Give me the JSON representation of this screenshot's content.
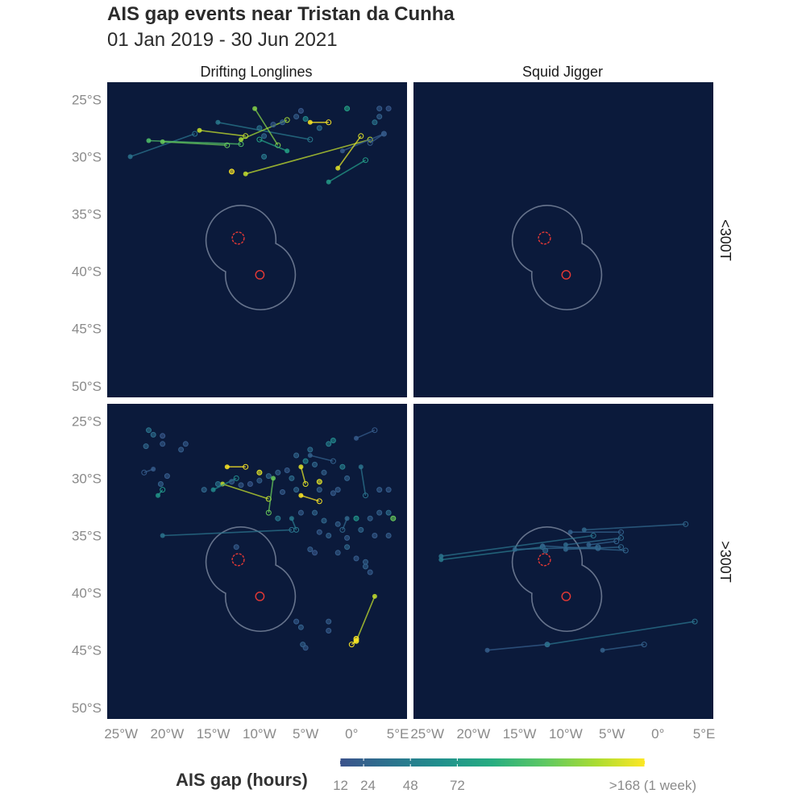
{
  "title": "AIS gap events near Tristan da Cunha",
  "subtitle": "01 Jan 2019 - 30 Jun 2021",
  "facets": {
    "columns": [
      "Drifting Longlines",
      "Squid Jigger"
    ],
    "rows": [
      "<300T",
      ">300T"
    ]
  },
  "axes": {
    "x_ticks": [
      {
        "value": -25,
        "label": "25°W"
      },
      {
        "value": -20,
        "label": "20°W"
      },
      {
        "value": -15,
        "label": "15°W"
      },
      {
        "value": -10,
        "label": "10°W"
      },
      {
        "value": -5,
        "label": "5°W"
      },
      {
        "value": 0,
        "label": "0°"
      },
      {
        "value": 5,
        "label": "5°E"
      }
    ],
    "y_ticks": [
      {
        "value": -25,
        "label": "25°S"
      },
      {
        "value": -30,
        "label": "30°S"
      },
      {
        "value": -35,
        "label": "35°S"
      },
      {
        "value": -40,
        "label": "40°S"
      },
      {
        "value": -45,
        "label": "45°S"
      },
      {
        "value": -50,
        "label": "50°S"
      }
    ],
    "xlim": [
      -26.5,
      6.0
    ],
    "ylim": [
      -51.0,
      -23.5
    ]
  },
  "legend": {
    "title": "AIS gap (hours)",
    "breaks": [
      {
        "value": 12,
        "label": "12"
      },
      {
        "value": 24,
        "label": "24"
      },
      {
        "value": 48,
        "label": "48"
      },
      {
        "value": 72,
        "label": "72"
      },
      {
        "value": 168,
        "label": ">168 (1 week)"
      }
    ],
    "colors": [
      "#3b528b",
      "#2c728e",
      "#21908d",
      "#27ad81",
      "#5dc863",
      "#aadc32",
      "#fde725"
    ]
  },
  "colors": {
    "panel_bg": "#0b1a3b",
    "boundary": "#66738c",
    "island": "#e53935"
  },
  "map_features": {
    "islands": [
      {
        "name": "Tristan da Cunha group",
        "lon": -12.3,
        "lat": -37.1,
        "r": 0.65
      },
      {
        "name": "Gough Island",
        "lon": -9.95,
        "lat": -40.3,
        "r": 0.45
      }
    ],
    "zone_centers": [
      {
        "lon": -12.0,
        "lat": -37.3
      },
      {
        "lon": -9.9,
        "lat": -40.3
      }
    ]
  },
  "chart_data": {
    "type": "scatter",
    "x_unit": "longitude (deg E)",
    "y_unit": "latitude (deg N)",
    "value_unit": "AIS gap (hours)",
    "panels": [
      {
        "column": "Drifting Longlines",
        "row": "<300T",
        "segments": [
          {
            "lon1": -24.0,
            "lat1": -30.0,
            "lon2": -17.0,
            "lat2": -28.0,
            "gap": 40
          },
          {
            "lon1": -22.0,
            "lat1": -28.6,
            "lon2": -12.0,
            "lat2": -28.9,
            "gap": 110
          },
          {
            "lon1": -20.5,
            "lat1": -28.7,
            "lon2": -13.5,
            "lat2": -29.0,
            "gap": 120
          },
          {
            "lon1": -16.5,
            "lat1": -27.7,
            "lon2": -11.5,
            "lat2": -28.2,
            "gap": 150
          },
          {
            "lon1": -14.5,
            "lat1": -27.0,
            "lon2": -4.5,
            "lat2": -28.5,
            "gap": 45
          },
          {
            "lon1": -10.5,
            "lat1": -25.8,
            "lon2": -8.0,
            "lat2": -29.0,
            "gap": 130
          },
          {
            "lon1": -12.0,
            "lat1": -28.5,
            "lon2": -7.0,
            "lat2": -26.8,
            "gap": 140
          },
          {
            "lon1": -4.5,
            "lat1": -27.0,
            "lon2": -2.5,
            "lat2": -27.0,
            "gap": 170
          },
          {
            "lon1": -11.5,
            "lat1": -31.5,
            "lon2": 2.0,
            "lat2": -28.5,
            "gap": 150
          },
          {
            "lon1": -1.0,
            "lat1": -29.5,
            "lon2": 3.5,
            "lat2": -28.0,
            "gap": 20
          },
          {
            "lon1": -2.5,
            "lat1": -32.2,
            "lon2": 1.5,
            "lat2": -30.3,
            "gap": 75
          },
          {
            "lon1": -7.0,
            "lat1": -29.5,
            "lon2": -10.0,
            "lat2": -28.5,
            "gap": 80
          },
          {
            "lon1": -1.5,
            "lat1": -31.0,
            "lon2": 1.0,
            "lat2": -28.2,
            "gap": 160
          },
          {
            "lon1": 3.5,
            "lat1": -28.0,
            "lon2": 2.0,
            "lat2": -28.8,
            "gap": 20
          }
        ],
        "points": [
          {
            "lon": -8.5,
            "lat": -27.2,
            "gap": 20
          },
          {
            "lon": -7.5,
            "lat": -27.0,
            "gap": 25
          },
          {
            "lon": -6.0,
            "lat": -26.5,
            "gap": 22
          },
          {
            "lon": -5.5,
            "lat": -26.0,
            "gap": 18
          },
          {
            "lon": -0.5,
            "lat": -25.8,
            "gap": 80
          },
          {
            "lon": 3.0,
            "lat": -25.8,
            "gap": 20
          },
          {
            "lon": 4.0,
            "lat": -25.8,
            "gap": 18
          },
          {
            "lon": -3.5,
            "lat": -27.5,
            "gap": 35
          },
          {
            "lon": -10.0,
            "lat": -27.5,
            "gap": 40
          },
          {
            "lon": -9.5,
            "lat": -28.2,
            "gap": 30
          },
          {
            "lon": -5.0,
            "lat": -26.7,
            "gap": 60
          },
          {
            "lon": 2.5,
            "lat": -27.0,
            "gap": 40
          },
          {
            "lon": -9.5,
            "lat": -30.0,
            "gap": 45
          },
          {
            "lon": -13.0,
            "lat": -31.3,
            "gap": 170
          },
          {
            "lon": 3.0,
            "lat": -26.5,
            "gap": 25
          }
        ]
      },
      {
        "column": "Squid Jigger",
        "row": "<300T",
        "segments": [],
        "points": []
      },
      {
        "column": "Drifting Longlines",
        "row": ">300T",
        "segments": [
          {
            "lon1": -20.5,
            "lat1": -35.0,
            "lon2": -6.5,
            "lat2": -34.5,
            "gap": 40
          },
          {
            "lon1": -13.5,
            "lat1": -29.0,
            "lon2": -11.5,
            "lat2": -29.0,
            "gap": 170
          },
          {
            "lon1": -14.0,
            "lat1": -30.5,
            "lon2": -9.0,
            "lat2": -31.8,
            "gap": 150
          },
          {
            "lon1": -8.5,
            "lat1": -30.0,
            "lon2": -9.0,
            "lat2": -33.0,
            "gap": 120
          },
          {
            "lon1": -5.5,
            "lat1": -29.0,
            "lon2": -5.0,
            "lat2": -30.5,
            "gap": 160
          },
          {
            "lon1": -5.5,
            "lat1": -31.5,
            "lon2": -3.5,
            "lat2": -32.0,
            "gap": 170
          },
          {
            "lon1": 2.5,
            "lat1": -40.3,
            "lon2": 0.5,
            "lat2": -44.2,
            "gap": 150
          },
          {
            "lon1": 0.5,
            "lat1": -44.2,
            "lon2": 0.0,
            "lat2": -44.5,
            "gap": 170
          },
          {
            "lon1": 1.0,
            "lat1": -29.0,
            "lon2": 1.5,
            "lat2": -31.5,
            "gap": 40
          },
          {
            "lon1": -15.0,
            "lat1": -31.0,
            "lon2": -12.5,
            "lat2": -30.0,
            "gap": 60
          },
          {
            "lon1": -21.5,
            "lat1": -29.2,
            "lon2": -22.5,
            "lat2": -29.5,
            "gap": 20
          },
          {
            "lon1": -4.5,
            "lat1": -28.0,
            "lon2": -2.0,
            "lat2": -28.5,
            "gap": 25
          },
          {
            "lon1": -6.5,
            "lat1": -33.5,
            "lon2": -6.0,
            "lat2": -34.5,
            "gap": 45
          },
          {
            "lon1": -0.5,
            "lat1": -33.5,
            "lon2": -1.0,
            "lat2": -34.5,
            "gap": 30
          },
          {
            "lon1": 0.5,
            "lat1": -26.5,
            "lon2": 2.5,
            "lat2": -25.8,
            "gap": 20
          },
          {
            "lon1": -21.0,
            "lat1": -31.5,
            "lon2": -20.5,
            "lat2": -31.0,
            "gap": 70
          }
        ],
        "points": [
          {
            "lon": -22.0,
            "lat": -25.8,
            "gap": 40
          },
          {
            "lon": -21.5,
            "lat": -26.2,
            "gap": 35
          },
          {
            "lon": -22.3,
            "lat": -27.2,
            "gap": 30
          },
          {
            "lon": -20.5,
            "lat": -27.0,
            "gap": 20
          },
          {
            "lon": -20.5,
            "lat": -26.3,
            "gap": 18
          },
          {
            "lon": -18.0,
            "lat": -27.0,
            "gap": 20
          },
          {
            "lon": -18.5,
            "lat": -27.5,
            "gap": 22
          },
          {
            "lon": -20.0,
            "lat": -29.8,
            "gap": 20
          },
          {
            "lon": -20.7,
            "lat": -30.5,
            "gap": 25
          },
          {
            "lon": -16.0,
            "lat": -31.0,
            "gap": 30
          },
          {
            "lon": -14.5,
            "lat": -30.5,
            "gap": 40
          },
          {
            "lon": -13.0,
            "lat": -30.3,
            "gap": 22
          },
          {
            "lon": -12.0,
            "lat": -30.6,
            "gap": 20
          },
          {
            "lon": -11.0,
            "lat": -30.5,
            "gap": 18
          },
          {
            "lon": -10.0,
            "lat": -30.2,
            "gap": 24
          },
          {
            "lon": -9.0,
            "lat": -29.8,
            "gap": 30
          },
          {
            "lon": -8.0,
            "lat": -29.5,
            "gap": 26
          },
          {
            "lon": -7.0,
            "lat": -29.3,
            "gap": 20
          },
          {
            "lon": -6.5,
            "lat": -30.0,
            "gap": 35
          },
          {
            "lon": -5.0,
            "lat": -28.5,
            "gap": 55
          },
          {
            "lon": -4.0,
            "lat": -28.8,
            "gap": 30
          },
          {
            "lon": -3.0,
            "lat": -29.5,
            "gap": 25
          },
          {
            "lon": -2.5,
            "lat": -27.0,
            "gap": 50
          },
          {
            "lon": -2.0,
            "lat": -26.7,
            "gap": 60
          },
          {
            "lon": -1.5,
            "lat": -31.0,
            "gap": 22
          },
          {
            "lon": -2.0,
            "lat": -31.3,
            "gap": 20
          },
          {
            "lon": -3.5,
            "lat": -31.0,
            "gap": 24
          },
          {
            "lon": -6.0,
            "lat": -31.0,
            "gap": 30
          },
          {
            "lon": -7.5,
            "lat": -31.2,
            "gap": 20
          },
          {
            "lon": -8.0,
            "lat": -33.5,
            "gap": 45
          },
          {
            "lon": -5.5,
            "lat": -33.0,
            "gap": 22
          },
          {
            "lon": -4.0,
            "lat": -33.0,
            "gap": 28
          },
          {
            "lon": -3.0,
            "lat": -33.7,
            "gap": 30
          },
          {
            "lon": -1.5,
            "lat": -34.0,
            "gap": 24
          },
          {
            "lon": -3.5,
            "lat": -34.7,
            "gap": 20
          },
          {
            "lon": -2.5,
            "lat": -35.0,
            "gap": 26
          },
          {
            "lon": -0.5,
            "lat": -35.2,
            "gap": 22
          },
          {
            "lon": 1.0,
            "lat": -34.5,
            "gap": 30
          },
          {
            "lon": 2.0,
            "lat": -33.5,
            "gap": 25
          },
          {
            "lon": 3.0,
            "lat": -31.0,
            "gap": 22
          },
          {
            "lon": 4.0,
            "lat": -31.0,
            "gap": 20
          },
          {
            "lon": 4.0,
            "lat": -33.0,
            "gap": 35
          },
          {
            "lon": 4.5,
            "lat": -33.5,
            "gap": 120
          },
          {
            "lon": 4.0,
            "lat": -35.0,
            "gap": 22
          },
          {
            "lon": 3.0,
            "lat": -33.0,
            "gap": 24
          },
          {
            "lon": 2.5,
            "lat": -35.0,
            "gap": 20
          },
          {
            "lon": -1.5,
            "lat": -36.5,
            "gap": 22
          },
          {
            "lon": -0.5,
            "lat": -36.0,
            "gap": 30
          },
          {
            "lon": 0.5,
            "lat": -37.0,
            "gap": 20
          },
          {
            "lon": 1.5,
            "lat": -37.3,
            "gap": 24
          },
          {
            "lon": 1.5,
            "lat": -37.7,
            "gap": 26
          },
          {
            "lon": 2.0,
            "lat": -38.2,
            "gap": 20
          },
          {
            "lon": -4.5,
            "lat": -36.2,
            "gap": 22
          },
          {
            "lon": -4.0,
            "lat": -36.5,
            "gap": 18
          },
          {
            "lon": -6.0,
            "lat": -42.5,
            "gap": 20
          },
          {
            "lon": -5.5,
            "lat": -43.0,
            "gap": 25
          },
          {
            "lon": -2.5,
            "lat": -42.5,
            "gap": 22
          },
          {
            "lon": -2.5,
            "lat": -43.3,
            "gap": 20
          },
          {
            "lon": -5.0,
            "lat": -44.8,
            "gap": 20
          },
          {
            "lon": -5.3,
            "lat": -44.5,
            "gap": 24
          },
          {
            "lon": 0.5,
            "lat": -44.0,
            "gap": 170
          },
          {
            "lon": -12.5,
            "lat": -36.0,
            "gap": 20
          },
          {
            "lon": 0.5,
            "lat": -33.5,
            "gap": 70
          },
          {
            "lon": -0.5,
            "lat": -30.0,
            "gap": 26
          },
          {
            "lon": -10.0,
            "lat": -29.5,
            "gap": 160
          },
          {
            "lon": -6.0,
            "lat": -28.0,
            "gap": 28
          },
          {
            "lon": -4.5,
            "lat": -27.5,
            "gap": 35
          },
          {
            "lon": -3.5,
            "lat": -30.3,
            "gap": 160
          },
          {
            "lon": -1.0,
            "lat": -29.0,
            "gap": 50
          }
        ]
      },
      {
        "column": "Squid Jigger",
        "row": ">300T",
        "segments": [
          {
            "lon1": -23.5,
            "lat1": -36.8,
            "lon2": -7.0,
            "lat2": -35.0,
            "gap": 40
          },
          {
            "lon1": -23.5,
            "lat1": -37.1,
            "lon2": -12.5,
            "lat2": -36.0,
            "gap": 45
          },
          {
            "lon1": -15.5,
            "lat1": -36.2,
            "lon2": -6.5,
            "lat2": -36.0,
            "gap": 30
          },
          {
            "lon1": -12.5,
            "lat1": -35.9,
            "lon2": -3.5,
            "lat2": -36.3,
            "gap": 28
          },
          {
            "lon1": -10.0,
            "lat1": -36.2,
            "lon2": -4.0,
            "lat2": -36.0,
            "gap": 30
          },
          {
            "lon1": -9.5,
            "lat1": -34.7,
            "lon2": -4.0,
            "lat2": -34.7,
            "gap": 25
          },
          {
            "lon1": -10.0,
            "lat1": -35.8,
            "lon2": -4.0,
            "lat2": -35.2,
            "gap": 32
          },
          {
            "lon1": -7.5,
            "lat1": -35.8,
            "lon2": -4.5,
            "lat2": -35.5,
            "gap": 26
          },
          {
            "lon1": -8.0,
            "lat1": -34.5,
            "lon2": 3.0,
            "lat2": -34.0,
            "gap": 30
          },
          {
            "lon1": -18.5,
            "lat1": -45.0,
            "lon2": -12.0,
            "lat2": -44.5,
            "gap": 22
          },
          {
            "lon1": -12.0,
            "lat1": -44.5,
            "lon2": 4.0,
            "lat2": -42.5,
            "gap": 40
          },
          {
            "lon1": -6.0,
            "lat1": -45.0,
            "lon2": -1.5,
            "lat2": -44.5,
            "gap": 24
          }
        ],
        "points": [
          {
            "lon": -12.2,
            "lat": -36.3,
            "gap": 30
          },
          {
            "lon": -6.5,
            "lat": -36.1,
            "gap": 28
          }
        ]
      }
    ]
  }
}
